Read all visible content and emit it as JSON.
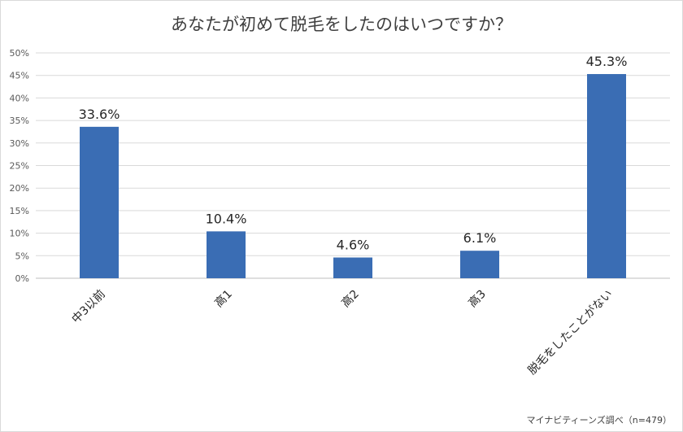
{
  "chart_data": {
    "type": "bar",
    "title": "あなたが初めて脱毛をしたのはいつですか？",
    "categories": [
      "中3以前",
      "高1",
      "高2",
      "高3",
      "脱毛をしたことがない"
    ],
    "values": [
      33.6,
      10.4,
      4.6,
      6.1,
      45.3
    ],
    "data_labels": [
      "33.6%",
      "10.4%",
      "4.6%",
      "6.1%",
      "45.3%"
    ],
    "y_ticks": [
      "0%",
      "5%",
      "10%",
      "15%",
      "20%",
      "25%",
      "30%",
      "35%",
      "40%",
      "45%",
      "50%"
    ],
    "ylim": [
      0,
      50
    ],
    "grid": true,
    "bar_color": "#3a6db4",
    "xlabel": "",
    "ylabel": ""
  },
  "source": "マイナビティーンズ調べ（n=479）"
}
